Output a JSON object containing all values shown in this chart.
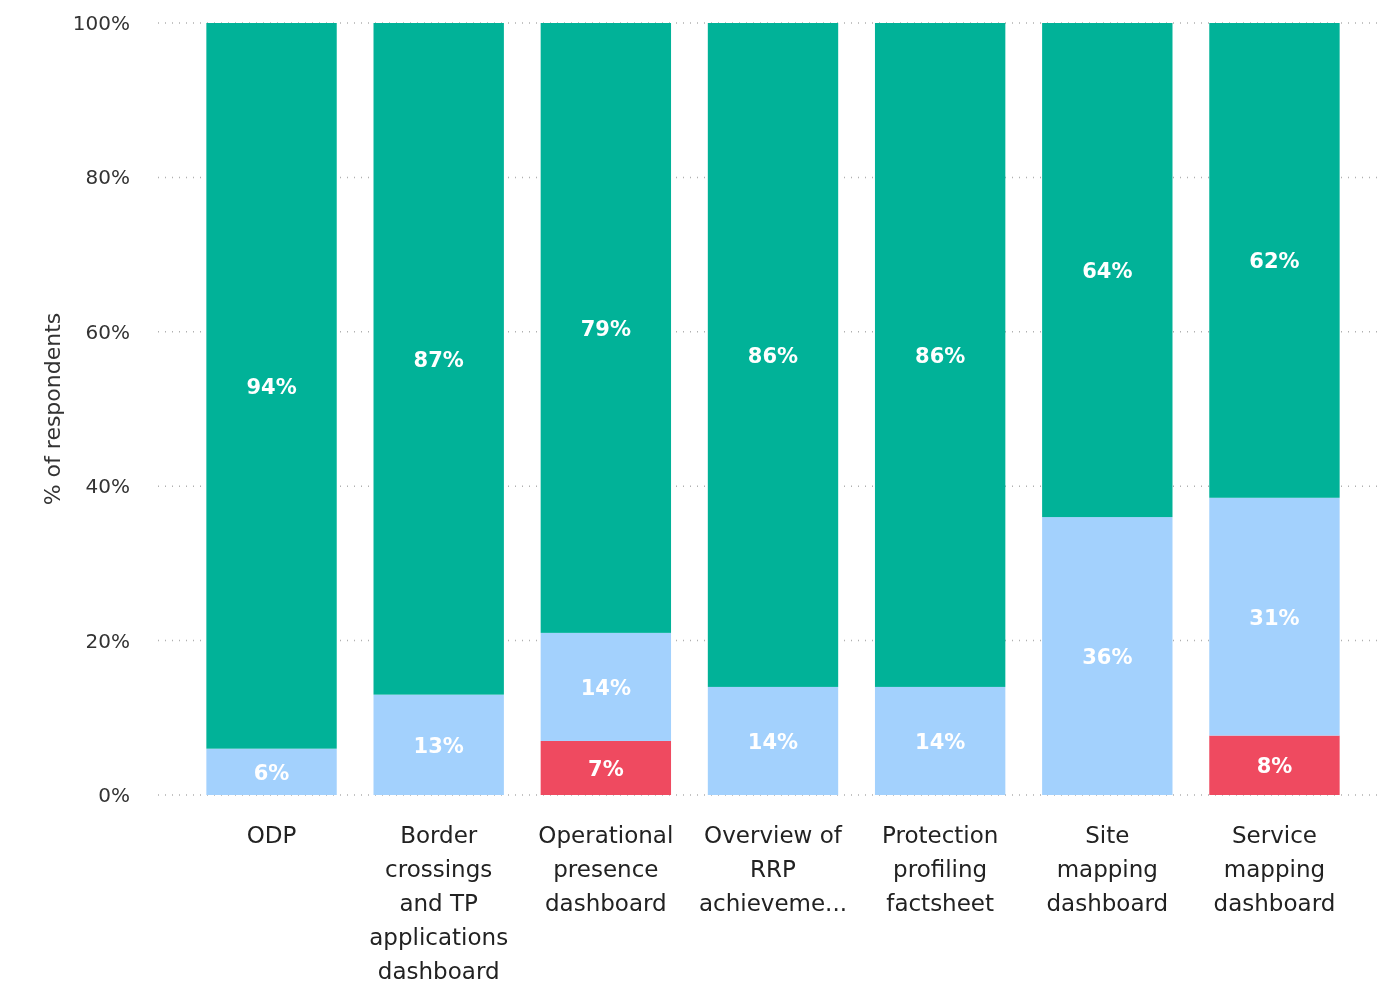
{
  "chart_data": {
    "type": "bar",
    "stacked": true,
    "ylabel": "% of respondents",
    "categories": [
      "ODP",
      "Border crossings and TP applications dashboard",
      "Operational presence dashboard",
      "Overview of RRP achieveme...",
      "Protection profiling factsheet",
      "Site mapping dashboard",
      "Service mapping dashboard"
    ],
    "series": [
      {
        "color": "#ef4a60",
        "values": [
          null,
          null,
          7,
          null,
          null,
          null,
          7.7
        ],
        "value_labels": [
          null,
          null,
          "7%",
          null,
          null,
          null,
          "8%"
        ]
      },
      {
        "color": "#a3d1fd",
        "values": [
          6,
          13,
          14,
          14,
          14,
          36,
          30.8
        ],
        "value_labels": [
          "6%",
          "13%",
          "14%",
          "14%",
          "14%",
          "36%",
          "31%"
        ]
      },
      {
        "color": "#01b298",
        "values": [
          94,
          87,
          79,
          86,
          86,
          64,
          61.5
        ],
        "value_labels": [
          "94%",
          "87%",
          "79%",
          "86%",
          "86%",
          "64%",
          "62%"
        ]
      }
    ],
    "ylim": [
      0,
      100
    ],
    "yticks": [
      {
        "value": 0,
        "label": "0%"
      },
      {
        "value": 20,
        "label": "20%"
      },
      {
        "value": 40,
        "label": "40%"
      },
      {
        "value": 60,
        "label": "60%"
      },
      {
        "value": 80,
        "label": "80%"
      },
      {
        "value": 100,
        "label": "100%"
      }
    ],
    "grid": "y"
  }
}
